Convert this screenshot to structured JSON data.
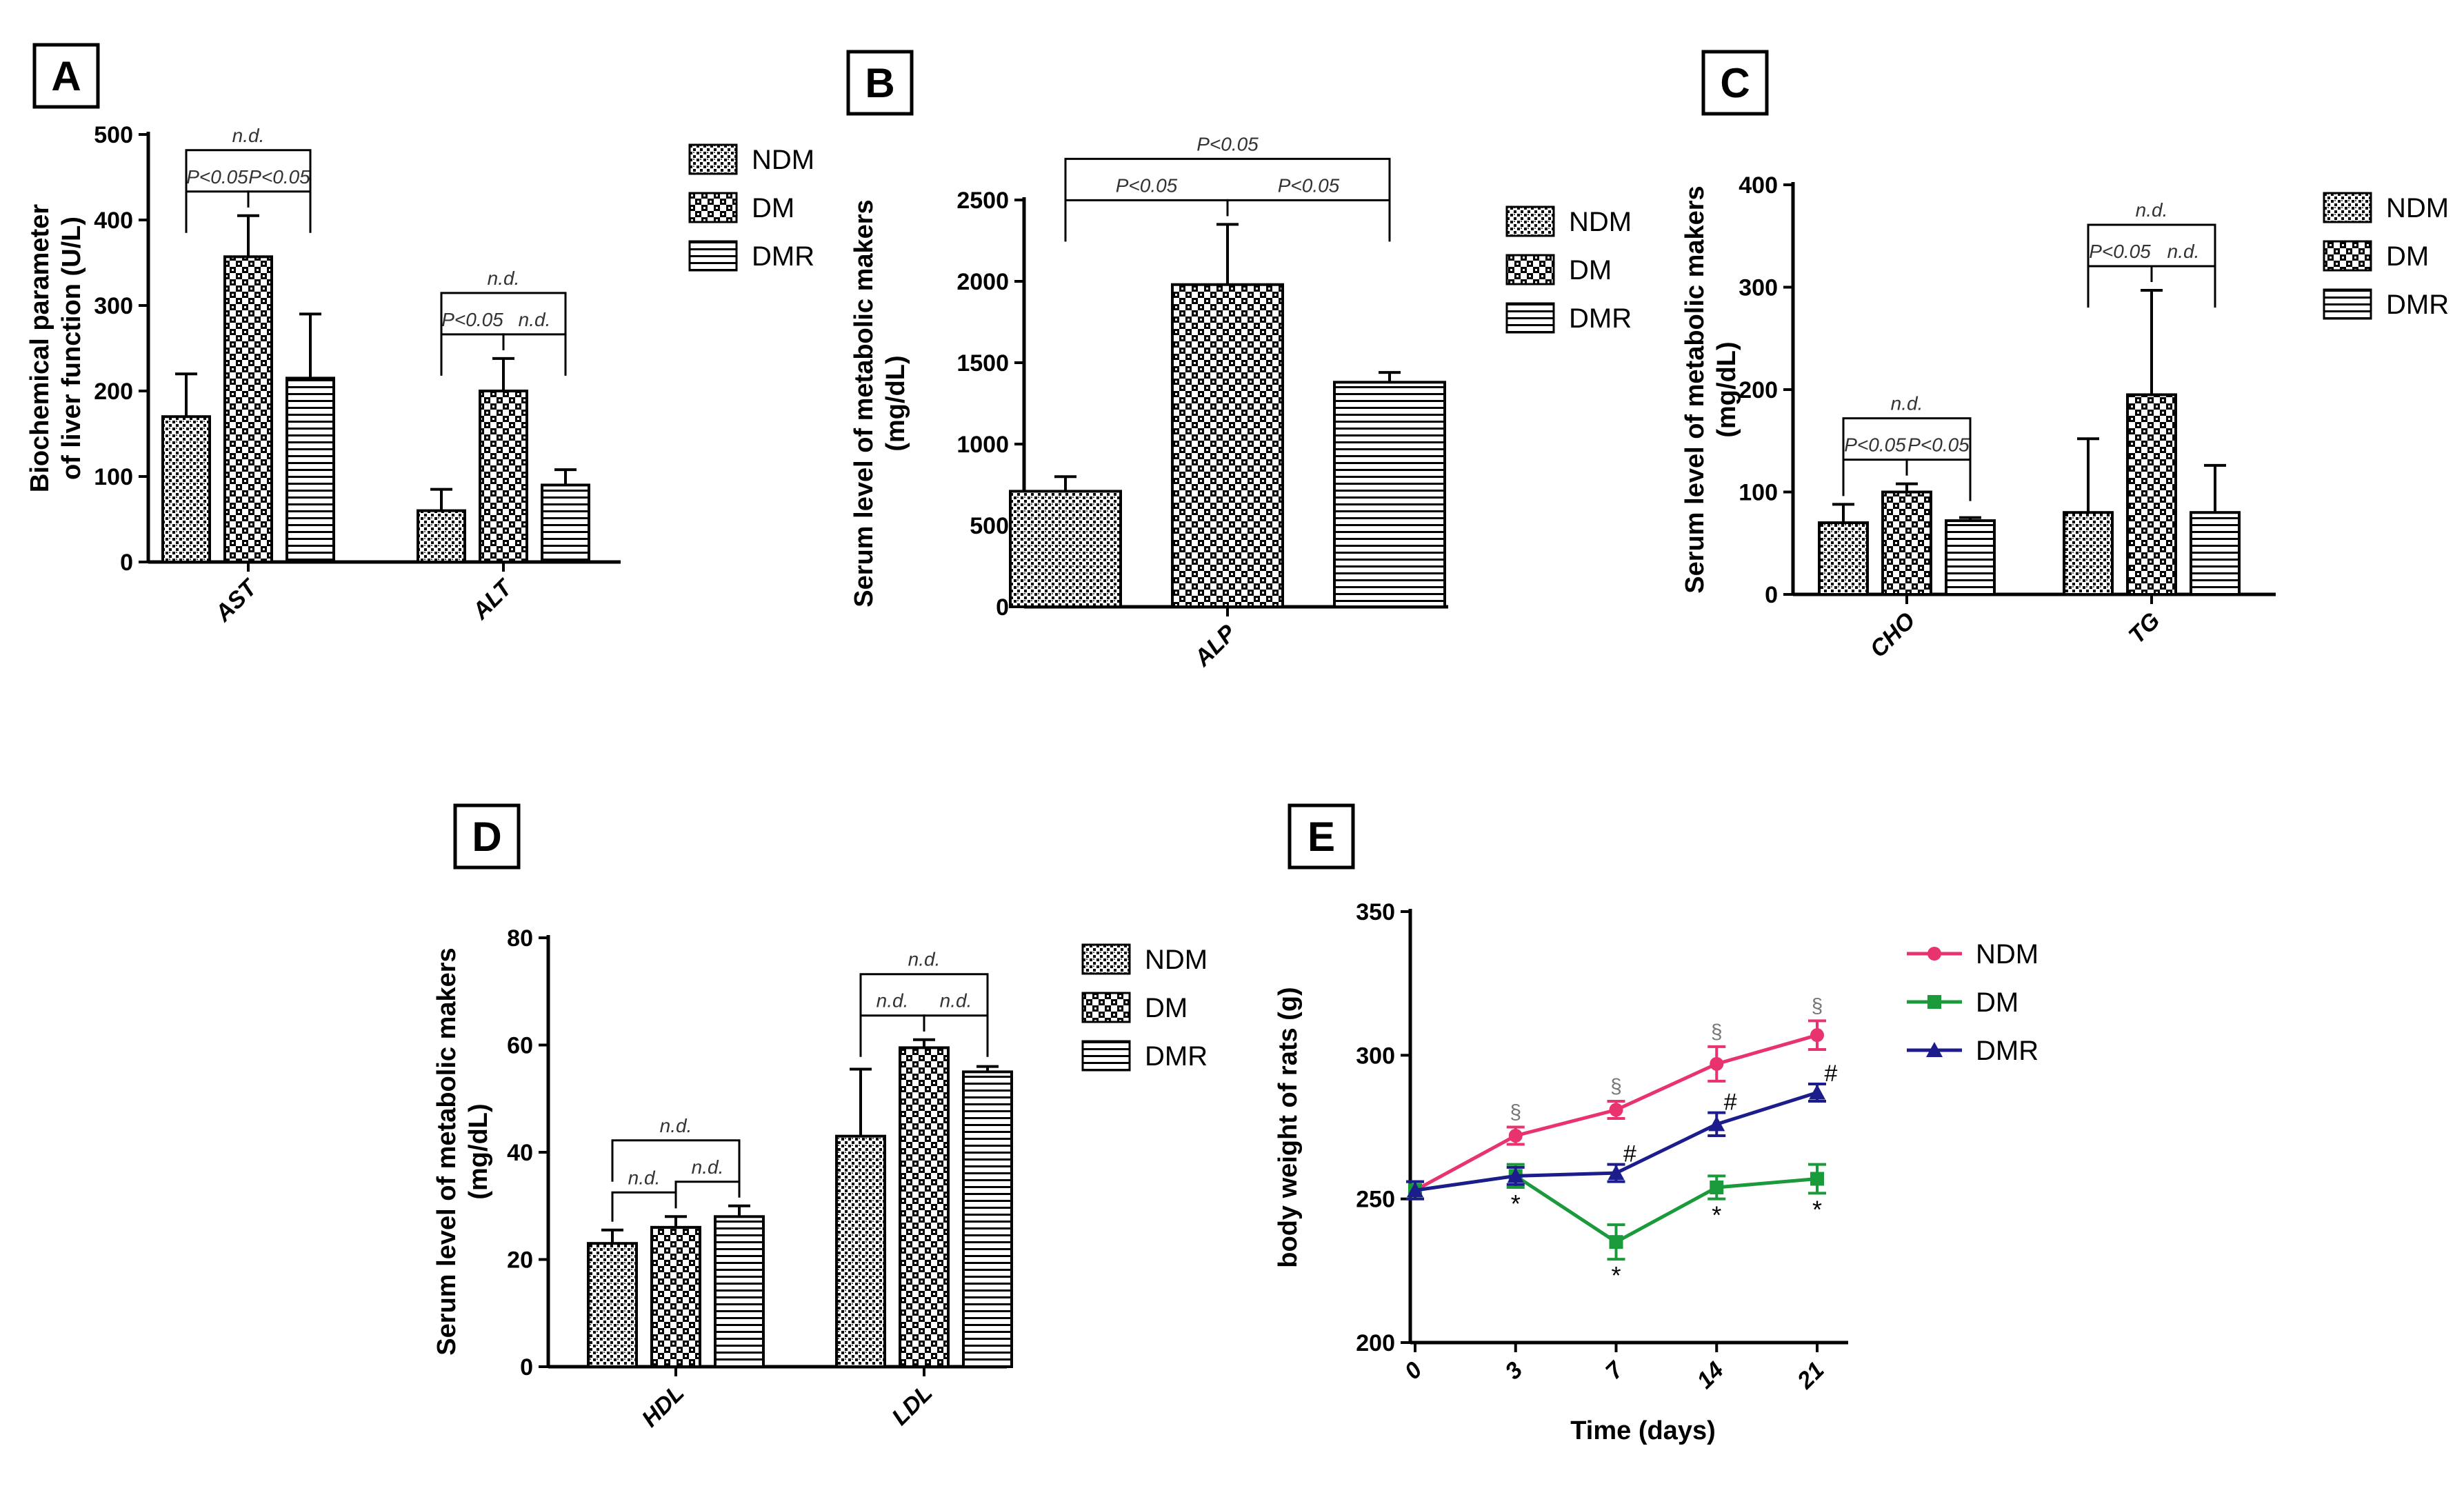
{
  "colors": {
    "axis": "#000000",
    "bar_stroke": "#000000",
    "bar_fill": "#ffffff",
    "sig_text": "#333333",
    "ndm_line": "#e8336e",
    "dm_line": "#1a9a3a",
    "dmr_line": "#1c1c8c"
  },
  "chart_data": [
    {
      "id": "A",
      "type": "bar",
      "panel_label": "A",
      "ylabel_lines": [
        "Biochemical parameter",
        "of liver function (U/L)"
      ],
      "ylim": [
        0,
        500
      ],
      "yticks": [
        "0",
        "100",
        "200",
        "300",
        "400",
        "500"
      ],
      "categories": [
        "AST",
        "ALT"
      ],
      "series": [
        {
          "name": "NDM",
          "pattern": "dots",
          "values": [
            170,
            60
          ],
          "errors": [
            50,
            25
          ]
        },
        {
          "name": "DM",
          "pattern": "check",
          "values": [
            357,
            200
          ],
          "errors": [
            48,
            38
          ]
        },
        {
          "name": "DMR",
          "pattern": "hlines",
          "values": [
            215,
            90
          ],
          "errors": [
            75,
            18
          ]
        }
      ],
      "legend": [
        "NDM",
        "DM",
        "DMR"
      ],
      "annotations": [
        {
          "cat": 0,
          "from": 0,
          "to": 1,
          "label": "P<0.05"
        },
        {
          "cat": 0,
          "from": 1,
          "to": 2,
          "label": "P<0.05"
        },
        {
          "cat": 0,
          "from": 0,
          "to": 2,
          "label": "n.d."
        },
        {
          "cat": 1,
          "from": 0,
          "to": 1,
          "label": "P<0.05"
        },
        {
          "cat": 1,
          "from": 1,
          "to": 2,
          "label": "n.d."
        },
        {
          "cat": 1,
          "from": 0,
          "to": 2,
          "label": "n.d."
        }
      ]
    },
    {
      "id": "B",
      "type": "bar",
      "panel_label": "B",
      "ylabel_lines": [
        "Serum level of metabolic makers",
        "(mg/dL)"
      ],
      "ylim": [
        0,
        2500
      ],
      "yticks": [
        "0",
        "500",
        "1000",
        "1500",
        "2000",
        "2500"
      ],
      "categories": [
        "ALP"
      ],
      "series": [
        {
          "name": "NDM",
          "pattern": "dots",
          "values": [
            710
          ],
          "errors": [
            90
          ]
        },
        {
          "name": "DM",
          "pattern": "check",
          "values": [
            1980
          ],
          "errors": [
            370
          ]
        },
        {
          "name": "DMR",
          "pattern": "hlines",
          "values": [
            1380
          ],
          "errors": [
            60
          ]
        }
      ],
      "legend": [
        "NDM",
        "DM",
        "DMR"
      ],
      "annotations": [
        {
          "cat": 0,
          "from": 0,
          "to": 1,
          "label": "P<0.05"
        },
        {
          "cat": 0,
          "from": 1,
          "to": 2,
          "label": "P<0.05"
        },
        {
          "cat": 0,
          "from": 0,
          "to": 2,
          "label": "P<0.05"
        }
      ]
    },
    {
      "id": "C",
      "type": "bar",
      "panel_label": "C",
      "ylabel_lines": [
        "Serum level of metabolic makers",
        "(mg/dL)"
      ],
      "ylim": [
        0,
        400
      ],
      "yticks": [
        "0",
        "100",
        "200",
        "300",
        "400"
      ],
      "categories": [
        "CHO",
        "TG"
      ],
      "series": [
        {
          "name": "NDM",
          "pattern": "dots",
          "values": [
            70,
            80
          ],
          "errors": [
            18,
            72
          ]
        },
        {
          "name": "DM",
          "pattern": "check",
          "values": [
            100,
            195
          ],
          "errors": [
            8,
            102
          ]
        },
        {
          "name": "DMR",
          "pattern": "hlines",
          "values": [
            72,
            80
          ],
          "errors": [
            3,
            46
          ]
        }
      ],
      "legend": [
        "NDM",
        "DM",
        "DMR"
      ],
      "annotations": [
        {
          "cat": 0,
          "from": 0,
          "to": 1,
          "label": "P<0.05"
        },
        {
          "cat": 0,
          "from": 1,
          "to": 2,
          "label": "P<0.05"
        },
        {
          "cat": 0,
          "from": 0,
          "to": 2,
          "label": "n.d."
        },
        {
          "cat": 1,
          "from": 0,
          "to": 1,
          "label": "P<0.05"
        },
        {
          "cat": 1,
          "from": 1,
          "to": 2,
          "label": "n.d."
        },
        {
          "cat": 1,
          "from": 0,
          "to": 2,
          "label": "n.d."
        }
      ]
    },
    {
      "id": "D",
      "type": "bar",
      "panel_label": "D",
      "ylabel_lines": [
        "Serum level of metabolic makers",
        "(mg/dL)"
      ],
      "ylim": [
        0,
        80
      ],
      "yticks": [
        "0",
        "20",
        "40",
        "60",
        "80"
      ],
      "categories": [
        "HDL",
        "LDL"
      ],
      "series": [
        {
          "name": "NDM",
          "pattern": "dots",
          "values": [
            23,
            43
          ],
          "errors": [
            2.5,
            12.5
          ]
        },
        {
          "name": "DM",
          "pattern": "check",
          "values": [
            26,
            59.5
          ],
          "errors": [
            2,
            1.5
          ]
        },
        {
          "name": "DMR",
          "pattern": "hlines",
          "values": [
            28,
            55
          ],
          "errors": [
            2,
            1
          ]
        }
      ],
      "legend": [
        "NDM",
        "DM",
        "DMR"
      ],
      "annotations": [
        {
          "cat": 0,
          "from": 0,
          "to": 1,
          "label": "n.d."
        },
        {
          "cat": 0,
          "from": 1,
          "to": 2,
          "label": "n.d."
        },
        {
          "cat": 0,
          "from": 0,
          "to": 2,
          "label": "n.d."
        },
        {
          "cat": 1,
          "from": 0,
          "to": 1,
          "label": "n.d."
        },
        {
          "cat": 1,
          "from": 1,
          "to": 2,
          "label": "n.d."
        },
        {
          "cat": 1,
          "from": 0,
          "to": 2,
          "label": "n.d."
        }
      ]
    },
    {
      "id": "E",
      "type": "line",
      "panel_label": "E",
      "ylabel": "body weight of rats (g)",
      "xlabel": "Time (days)",
      "ylim": [
        200,
        350
      ],
      "yticks": [
        "200",
        "250",
        "300",
        "350"
      ],
      "x": [
        "0",
        "3",
        "7",
        "14",
        "21"
      ],
      "series": [
        {
          "name": "NDM",
          "marker": "circle",
          "values": [
            253,
            272,
            281,
            297,
            307
          ],
          "errors": [
            3,
            3,
            3,
            6,
            5
          ]
        },
        {
          "name": "DM",
          "marker": "square",
          "values": [
            253,
            258,
            235,
            254,
            257
          ],
          "errors": [
            3,
            4,
            6,
            4,
            5
          ]
        },
        {
          "name": "DMR",
          "marker": "triangle",
          "values": [
            253,
            258,
            259,
            276,
            287
          ],
          "errors": [
            3,
            3,
            3,
            4,
            3
          ]
        }
      ],
      "legend": [
        "NDM",
        "DM",
        "DMR"
      ],
      "symbols": [
        {
          "series": 0,
          "x_index": 1,
          "symbol": "§"
        },
        {
          "series": 0,
          "x_index": 2,
          "symbol": "§"
        },
        {
          "series": 0,
          "x_index": 3,
          "symbol": "§"
        },
        {
          "series": 0,
          "x_index": 4,
          "symbol": "§"
        },
        {
          "series": 1,
          "x_index": 1,
          "symbol": "*"
        },
        {
          "series": 1,
          "x_index": 2,
          "symbol": "*"
        },
        {
          "series": 1,
          "x_index": 3,
          "symbol": "*"
        },
        {
          "series": 1,
          "x_index": 4,
          "symbol": "*"
        },
        {
          "series": 2,
          "x_index": 2,
          "symbol": "#"
        },
        {
          "series": 2,
          "x_index": 3,
          "symbol": "#"
        },
        {
          "series": 2,
          "x_index": 4,
          "symbol": "#"
        }
      ]
    }
  ]
}
